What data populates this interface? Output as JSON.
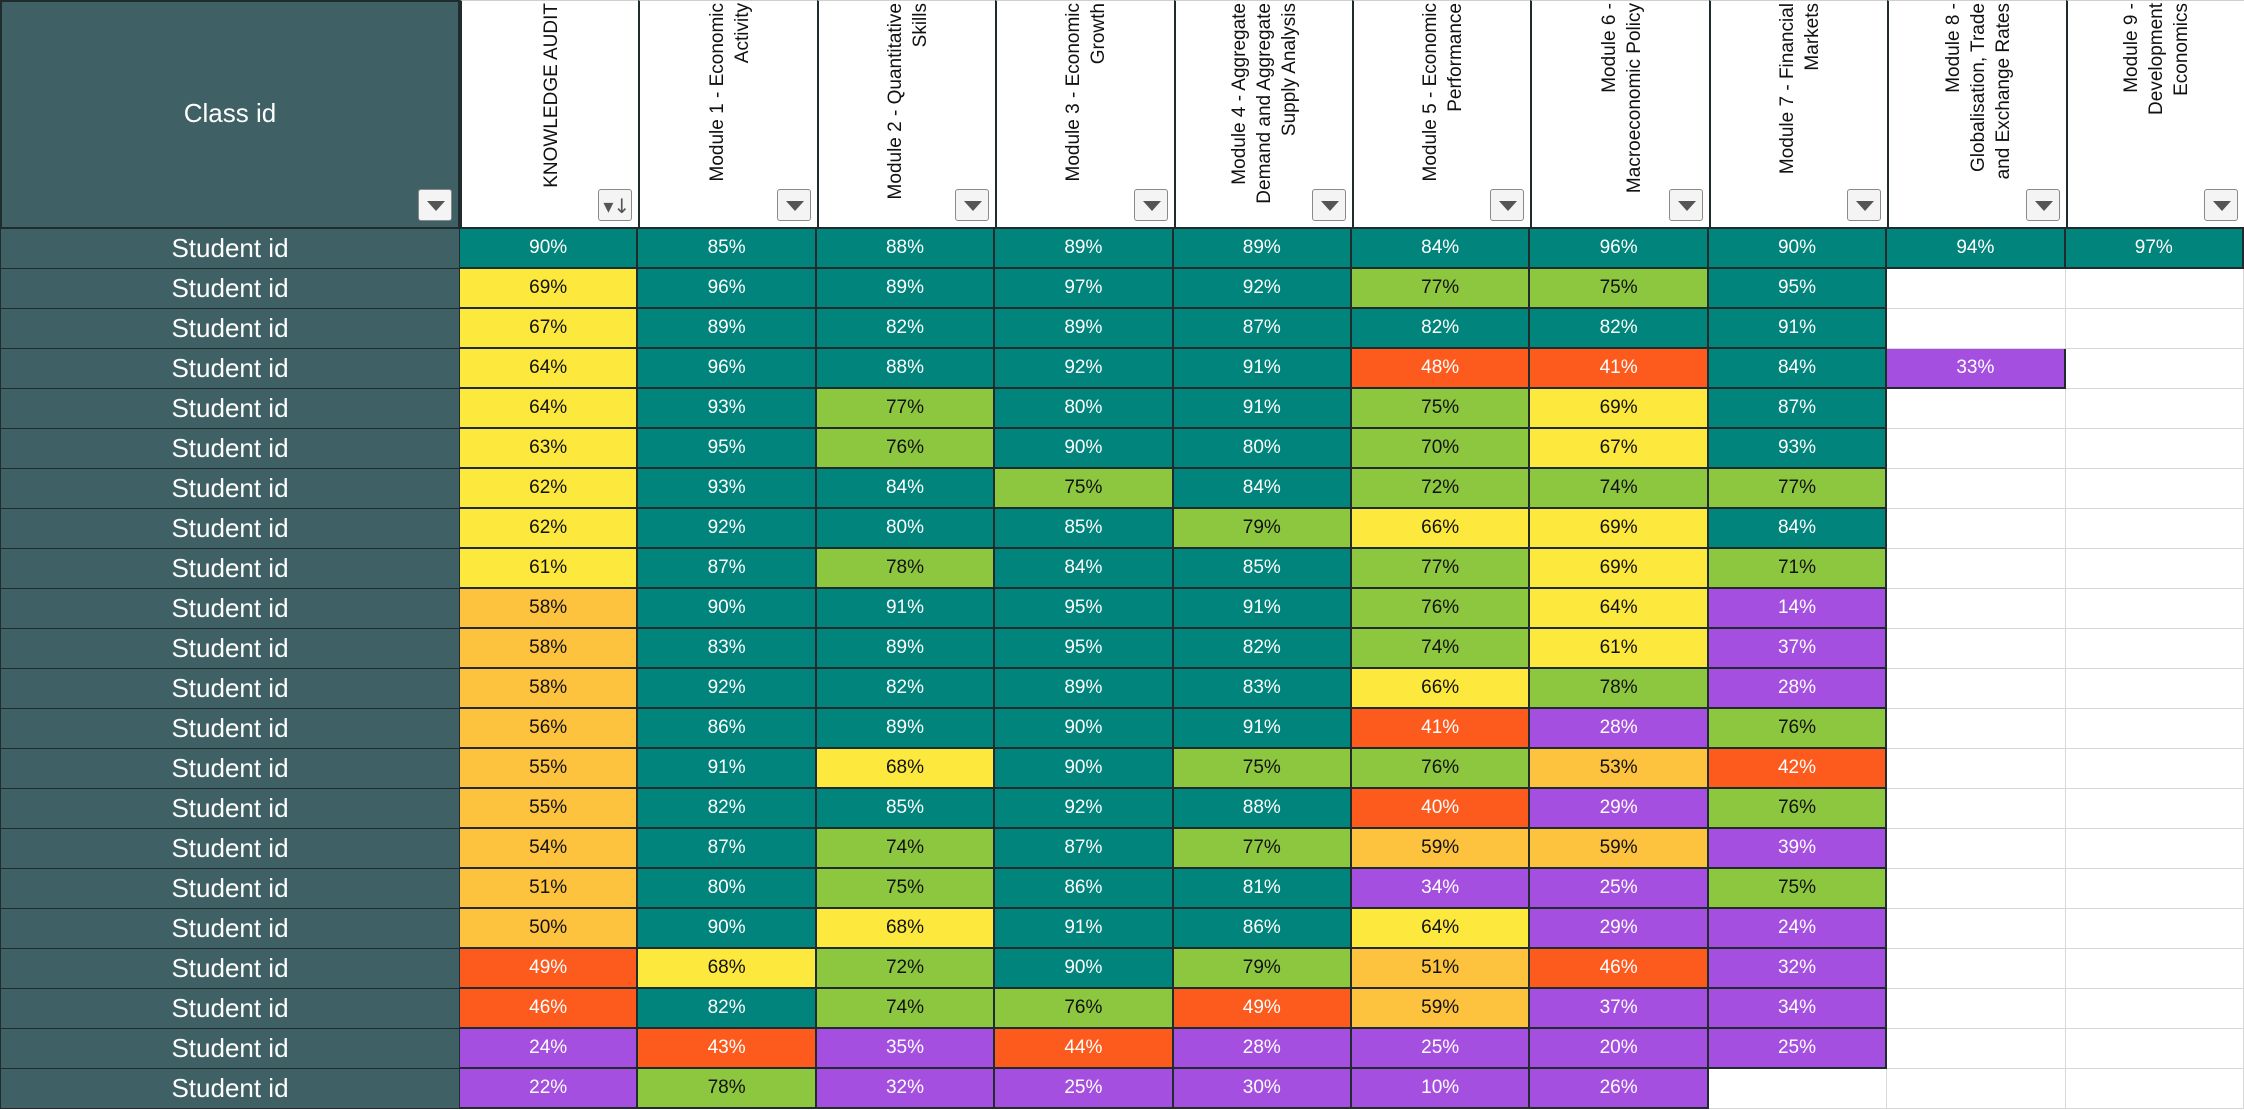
{
  "sheet": {
    "corner_label": "Class id",
    "columns": [
      {
        "title": "KNOWLEDGE AUDIT",
        "filter": "sort"
      },
      {
        "title": "Module 1 - Economic\nActivity",
        "filter": "dropdown"
      },
      {
        "title": "Module 2 - Quantitative\nSkills",
        "filter": "dropdown"
      },
      {
        "title": "Module 3 - Economic\nGrowth",
        "filter": "dropdown"
      },
      {
        "title": "Module 4 - Aggregate\nDemand and Aggregate\nSupply Analysis",
        "filter": "dropdown"
      },
      {
        "title": "Module 5 - Economic\nPerformance",
        "filter": "dropdown"
      },
      {
        "title": "Module 6 -\nMacroeconomic Policy",
        "filter": "dropdown"
      },
      {
        "title": "Module 7 - Financial\nMarkets",
        "filter": "dropdown"
      },
      {
        "title": "Module 8 -\nGlobalisation, Trade\nand Exchange Rates",
        "filter": "dropdown"
      },
      {
        "title": "Module 9 -\nDevelopment\nEconomics",
        "filter": "dropdown"
      }
    ],
    "colors": {
      "teal": "#00847b",
      "light_green": "#8dc63f",
      "yellow": "#fde93d",
      "orange": "#fdc23e",
      "red": "#fd5a1e",
      "purple": "#a54fe0",
      "header_dark": "#3f6064"
    },
    "rows": [
      {
        "label": "Student id",
        "values": [
          "90%",
          "85%",
          "88%",
          "89%",
          "89%",
          "84%",
          "96%",
          "90%",
          "94%",
          "97%"
        ]
      },
      {
        "label": "Student id",
        "values": [
          "69%",
          "96%",
          "89%",
          "97%",
          "92%",
          "77%",
          "75%",
          "95%",
          "",
          ""
        ]
      },
      {
        "label": "Student id",
        "values": [
          "67%",
          "89%",
          "82%",
          "89%",
          "87%",
          "82%",
          "82%",
          "91%",
          "",
          ""
        ]
      },
      {
        "label": "Student id",
        "values": [
          "64%",
          "96%",
          "88%",
          "92%",
          "91%",
          "48%",
          "41%",
          "84%",
          "33%",
          ""
        ]
      },
      {
        "label": "Student id",
        "values": [
          "64%",
          "93%",
          "77%",
          "80%",
          "91%",
          "75%",
          "69%",
          "87%",
          "",
          ""
        ]
      },
      {
        "label": "Student id",
        "values": [
          "63%",
          "95%",
          "76%",
          "90%",
          "80%",
          "70%",
          "67%",
          "93%",
          "",
          ""
        ]
      },
      {
        "label": "Student id",
        "values": [
          "62%",
          "93%",
          "84%",
          "75%",
          "84%",
          "72%",
          "74%",
          "77%",
          "",
          ""
        ]
      },
      {
        "label": "Student id",
        "values": [
          "62%",
          "92%",
          "80%",
          "85%",
          "79%",
          "66%",
          "69%",
          "84%",
          "",
          ""
        ]
      },
      {
        "label": "Student id",
        "values": [
          "61%",
          "87%",
          "78%",
          "84%",
          "85%",
          "77%",
          "69%",
          "71%",
          "",
          ""
        ]
      },
      {
        "label": "Student id",
        "values": [
          "58%",
          "90%",
          "91%",
          "95%",
          "91%",
          "76%",
          "64%",
          "14%",
          "",
          ""
        ]
      },
      {
        "label": "Student id",
        "values": [
          "58%",
          "83%",
          "89%",
          "95%",
          "82%",
          "74%",
          "61%",
          "37%",
          "",
          ""
        ]
      },
      {
        "label": "Student id",
        "values": [
          "58%",
          "92%",
          "82%",
          "89%",
          "83%",
          "66%",
          "78%",
          "28%",
          "",
          ""
        ]
      },
      {
        "label": "Student id",
        "values": [
          "56%",
          "86%",
          "89%",
          "90%",
          "91%",
          "41%",
          "28%",
          "76%",
          "",
          ""
        ]
      },
      {
        "label": "Student id",
        "values": [
          "55%",
          "91%",
          "68%",
          "90%",
          "75%",
          "76%",
          "53%",
          "42%",
          "",
          ""
        ]
      },
      {
        "label": "Student id",
        "values": [
          "55%",
          "82%",
          "85%",
          "92%",
          "88%",
          "40%",
          "29%",
          "76%",
          "",
          ""
        ]
      },
      {
        "label": "Student id",
        "values": [
          "54%",
          "87%",
          "74%",
          "87%",
          "77%",
          "59%",
          "59%",
          "39%",
          "",
          ""
        ]
      },
      {
        "label": "Student id",
        "values": [
          "51%",
          "80%",
          "75%",
          "86%",
          "81%",
          "34%",
          "25%",
          "75%",
          "",
          ""
        ]
      },
      {
        "label": "Student id",
        "values": [
          "50%",
          "90%",
          "68%",
          "91%",
          "86%",
          "64%",
          "29%",
          "24%",
          "",
          ""
        ]
      },
      {
        "label": "Student id",
        "values": [
          "49%",
          "68%",
          "72%",
          "90%",
          "79%",
          "51%",
          "46%",
          "32%",
          "",
          ""
        ]
      },
      {
        "label": "Student id",
        "values": [
          "46%",
          "82%",
          "74%",
          "76%",
          "49%",
          "59%",
          "37%",
          "34%",
          "",
          ""
        ]
      },
      {
        "label": "Student id",
        "values": [
          "24%",
          "43%",
          "35%",
          "44%",
          "28%",
          "25%",
          "20%",
          "25%",
          "",
          ""
        ]
      },
      {
        "label": "Student id",
        "values": [
          "22%",
          "78%",
          "32%",
          "25%",
          "30%",
          "10%",
          "26%",
          "",
          "",
          ""
        ]
      }
    ]
  }
}
